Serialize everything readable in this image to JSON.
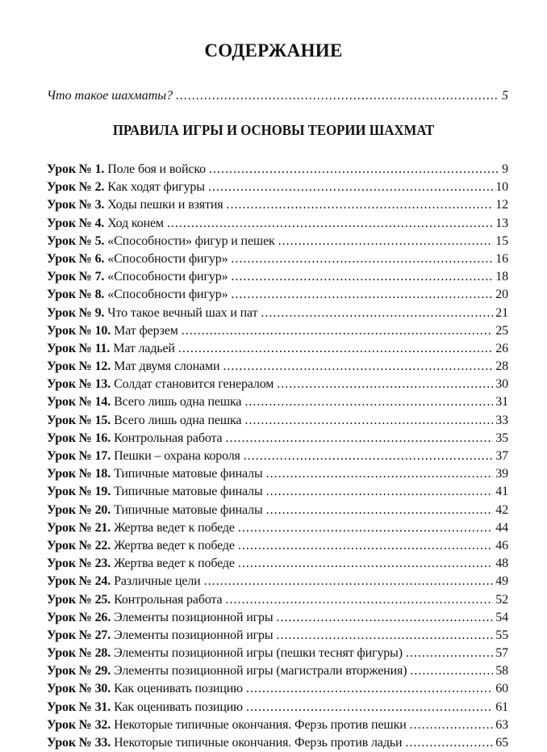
{
  "title": "СОДЕРЖАНИЕ",
  "intro": {
    "text": "Что такое шахматы?",
    "page": "5"
  },
  "section": "ПРАВИЛА ИГРЫ И ОСНОВЫ ТЕОРИИ ШАХМАТ",
  "lessons": [
    {
      "label": "Урок № 1.",
      "title": "Поле боя и войско",
      "page": "9"
    },
    {
      "label": "Урок № 2.",
      "title": "Как ходят фигуры",
      "page": "10"
    },
    {
      "label": "Урок № 3.",
      "title": "Ходы пешки и взятия",
      "page": "12"
    },
    {
      "label": "Урок № 4.",
      "title": "Ход конем",
      "page": "13"
    },
    {
      "label": "Урок № 5.",
      "title": "«Способности» фигур и пешек",
      "page": "15"
    },
    {
      "label": "Урок № 6.",
      "title": "«Способности фигур»",
      "page": "16"
    },
    {
      "label": "Урок № 7.",
      "title": "«Способности фигур»",
      "page": "18"
    },
    {
      "label": "Урок № 8.",
      "title": "«Способности фигур»",
      "page": "20"
    },
    {
      "label": "Урок № 9.",
      "title": "Что такое вечный шах и пат",
      "page": "21"
    },
    {
      "label": "Урок № 10.",
      "title": "Мат ферзем",
      "page": "25"
    },
    {
      "label": "Урок № 11.",
      "title": "Мат ладьей",
      "page": "26"
    },
    {
      "label": "Урок № 12.",
      "title": "Мат двумя слонами",
      "page": "28"
    },
    {
      "label": "Урок № 13.",
      "title": "Солдат становится генералом",
      "page": "30"
    },
    {
      "label": "Урок № 14.",
      "title": "Всего лишь одна пешка",
      "page": "31"
    },
    {
      "label": "Урок № 15.",
      "title": "Всего лишь одна пешка",
      "page": "33"
    },
    {
      "label": "Урок № 16.",
      "title": "Контрольная работа",
      "page": "35"
    },
    {
      "label": "Урок № 17.",
      "title": "Пешки – охрана короля",
      "page": "37"
    },
    {
      "label": "Урок № 18.",
      "title": "Типичные матовые финалы",
      "page": "39"
    },
    {
      "label": "Урок № 19.",
      "title": "Типичные матовые финалы",
      "page": "41"
    },
    {
      "label": "Урок № 20.",
      "title": "Типичные матовые финалы",
      "page": "42"
    },
    {
      "label": "Урок № 21.",
      "title": "Жертва ведет к победе",
      "page": "44"
    },
    {
      "label": "Урок № 22.",
      "title": "Жертва ведет к победе",
      "page": "46"
    },
    {
      "label": "Урок № 23.",
      "title": "Жертва ведет к победе",
      "page": "48"
    },
    {
      "label": "Урок № 24.",
      "title": "Различные цели",
      "page": "49"
    },
    {
      "label": "Урок № 25.",
      "title": "Контрольная работа",
      "page": "52"
    },
    {
      "label": "Урок № 26.",
      "title": "Элементы позиционной игры",
      "page": "54"
    },
    {
      "label": "Урок № 27.",
      "title": "Элементы позиционной игры",
      "page": "55"
    },
    {
      "label": "Урок № 28.",
      "title": "Элементы позиционной игры (пешки теснят фигуры)",
      "page": "57"
    },
    {
      "label": "Урок № 29.",
      "title": "Элементы позиционной игры (магистрали вторжения)",
      "page": "58"
    },
    {
      "label": "Урок № 30.",
      "title": "Как оценивать позицию",
      "page": "60"
    },
    {
      "label": "Урок № 31.",
      "title": "Как оценивать позицию",
      "page": "61"
    },
    {
      "label": "Урок № 32.",
      "title": "Некоторые типичные окончания. Ферзь против пешки",
      "page": "63"
    },
    {
      "label": "Урок № 33.",
      "title": "Некоторые типичные окончания. Ферзь против ладьи",
      "page": "65"
    }
  ]
}
